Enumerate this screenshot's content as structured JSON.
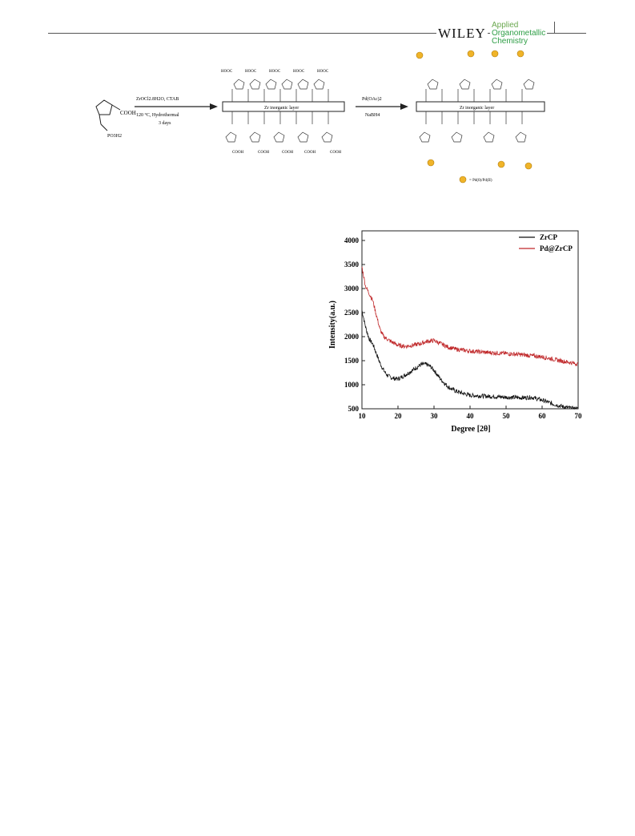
{
  "header": {
    "publisher": "WILEY",
    "journal_line1": "Applied",
    "journal_line2": "Organometallic",
    "journal_line3": "Chemistry"
  },
  "scheme": {
    "reactant_acid": "COOH",
    "reactant_phos": "PO3H2",
    "step1_reagents": "ZrOCl2.8H2O, CTAB",
    "step1_conditions": "120 °C, Hydrothermal",
    "step1_time": "3 days",
    "layer_label": "Zr inorganic layer",
    "hooc_label": "HOOC",
    "cooh_label": "COOH",
    "step2_reagent1": "Pd(OAc)2",
    "step2_reagent2": "NaBH4",
    "layer_label2": "Zr inorganic layer",
    "legend": "= Pd(0)/Pd(II)"
  },
  "chart_data": {
    "type": "line",
    "xlabel": "Degree [2θ]",
    "ylabel": "Intensity(a.u.)",
    "xlim": [
      10,
      70
    ],
    "ylim": [
      500,
      4200
    ],
    "xticks": [
      10,
      20,
      30,
      40,
      50,
      60,
      70
    ],
    "yticks": [
      500,
      1000,
      1500,
      2000,
      2500,
      3000,
      3500,
      4000
    ],
    "legend_position": "top-right",
    "series": [
      {
        "name": "ZrCP",
        "color": "#111111",
        "x": [
          10,
          11,
          12,
          13,
          14,
          15,
          16,
          17,
          18,
          19,
          20,
          22,
          24,
          26,
          27,
          28,
          29,
          30,
          32,
          34,
          36,
          38,
          40,
          45,
          50,
          55,
          57,
          60,
          63,
          66,
          68,
          70
        ],
        "y": [
          2550,
          2200,
          1950,
          1850,
          1650,
          1450,
          1300,
          1200,
          1150,
          1130,
          1120,
          1200,
          1300,
          1400,
          1430,
          1420,
          1380,
          1300,
          1100,
          950,
          870,
          820,
          780,
          760,
          740,
          730,
          740,
          680,
          600,
          540,
          510,
          500
        ]
      },
      {
        "name": "Pd@ZrCP",
        "color": "#c0282a",
        "x": [
          10,
          11,
          12,
          13,
          14,
          15,
          16,
          17,
          18,
          20,
          22,
          24,
          26,
          28,
          30,
          32,
          34,
          36,
          40,
          45,
          50,
          55,
          60,
          65,
          70
        ],
        "y": [
          3450,
          3050,
          2900,
          2750,
          2450,
          2150,
          2000,
          1950,
          1900,
          1820,
          1800,
          1820,
          1850,
          1900,
          1920,
          1850,
          1780,
          1740,
          1700,
          1670,
          1650,
          1620,
          1580,
          1500,
          1430
        ]
      }
    ]
  }
}
